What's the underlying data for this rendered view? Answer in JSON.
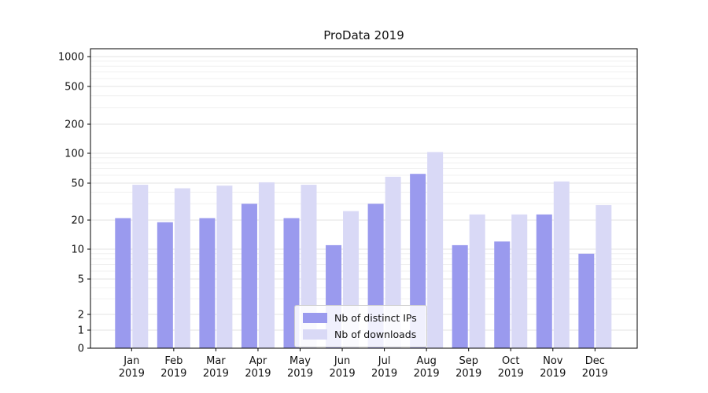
{
  "chart_data": {
    "type": "bar",
    "title": "ProData 2019",
    "categories": [
      "Jan 2019",
      "Feb 2019",
      "Mar 2019",
      "Apr 2019",
      "May 2019",
      "Jun 2019",
      "Jul 2019",
      "Aug 2019",
      "Sep 2019",
      "Oct 2019",
      "Nov 2019",
      "Dec 2019"
    ],
    "series": [
      {
        "name": "Nb of distinct IPs",
        "color": "#9a9aee",
        "values": [
          21,
          19,
          21,
          30,
          21,
          11,
          30,
          62,
          11,
          12,
          23,
          9
        ]
      },
      {
        "name": "Nb of downloads",
        "color": "#d9d9f6",
        "values": [
          48,
          44,
          47,
          51,
          48,
          25,
          58,
          103,
          23,
          23,
          52,
          29
        ]
      }
    ],
    "yscale": "symlog",
    "yticks": [
      0,
      1,
      2,
      5,
      10,
      20,
      50,
      100,
      200,
      500,
      1000
    ],
    "ylim": [
      0,
      1200
    ],
    "xlabel": "",
    "ylabel": "",
    "grid": true,
    "legend_position": "lower center"
  }
}
